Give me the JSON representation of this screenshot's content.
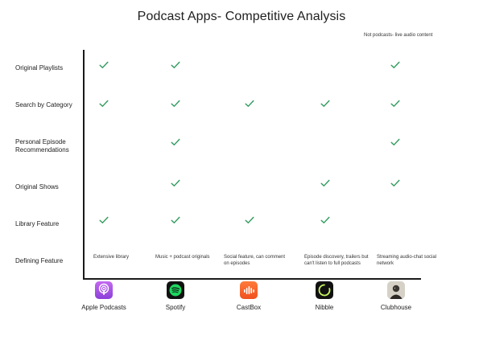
{
  "title": "Podcast Apps- Competitive Analysis",
  "note": "Not podcasts- live audio content",
  "rows": [
    {
      "label": "Original Playlists"
    },
    {
      "label": "Search by Category"
    },
    {
      "label": "Personal Episode Recommendations"
    },
    {
      "label": "Original Shows"
    },
    {
      "label": "Library Feature"
    },
    {
      "label": "Defining Feature"
    }
  ],
  "apps": [
    {
      "name": "Apple Podcasts",
      "icon": "apple-podcasts-icon",
      "color": "#a94fe6",
      "defining": "Extensive library"
    },
    {
      "name": "Spotify",
      "icon": "spotify-icon",
      "color": "#1ed760",
      "defining": "Music + podcast originals"
    },
    {
      "name": "CastBox",
      "icon": "castbox-icon",
      "color": "#f55b23",
      "defining": "Social feature, can comment on episodes"
    },
    {
      "name": "Nibble",
      "icon": "nibble-icon",
      "color": "#111111",
      "defining": "Episode discovery, trailers but can't listen to full podcasts"
    },
    {
      "name": "Clubhouse",
      "icon": "clubhouse-icon",
      "color": "#d9d4c9",
      "defining": "Streaming audio-chat social network"
    }
  ],
  "check_color": "#2e9a5c",
  "checks": {
    "original_playlists": [
      true,
      true,
      false,
      false,
      true
    ],
    "search_by_category": [
      true,
      true,
      true,
      true,
      true
    ],
    "personal_recommendations": [
      false,
      true,
      false,
      false,
      true
    ],
    "original_shows": [
      false,
      true,
      false,
      true,
      true
    ],
    "library_feature": [
      true,
      true,
      true,
      true,
      false
    ]
  }
}
